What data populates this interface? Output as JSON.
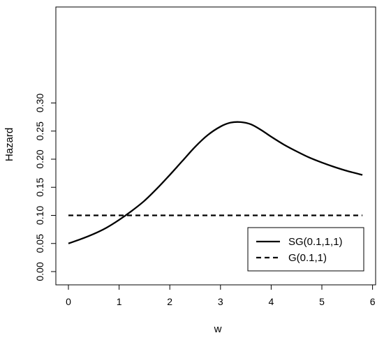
{
  "chart_data": {
    "type": "line",
    "xlabel": "w",
    "ylabel": "Hazard",
    "xlim": [
      0,
      6
    ],
    "ylim": [
      0,
      0.3
    ],
    "x_ticks": [
      "0",
      "1",
      "2",
      "3",
      "4",
      "5",
      "6"
    ],
    "y_ticks": [
      "0.00",
      "0.05",
      "0.10",
      "0.15",
      "0.20",
      "0.25",
      "0.30"
    ],
    "grid": false,
    "legend_position": "bottom-right",
    "series": [
      {
        "name": "SG(0.1,1,1)",
        "line_style": "solid",
        "color": "#000000",
        "x": [
          0,
          0.25,
          0.5,
          0.75,
          1.0,
          1.25,
          1.5,
          1.75,
          2.0,
          2.25,
          2.5,
          2.75,
          3.0,
          3.2,
          3.4,
          3.6,
          3.8,
          4.0,
          4.25,
          4.5,
          4.75,
          5.0,
          5.25,
          5.5,
          5.8
        ],
        "y": [
          0.05,
          0.058,
          0.067,
          0.078,
          0.092,
          0.108,
          0.126,
          0.148,
          0.172,
          0.197,
          0.222,
          0.243,
          0.258,
          0.265,
          0.266,
          0.262,
          0.252,
          0.24,
          0.226,
          0.214,
          0.203,
          0.194,
          0.186,
          0.179,
          0.172
        ]
      },
      {
        "name": "G(0.1,1)",
        "line_style": "dashed",
        "color": "#000000",
        "x": [
          0,
          5.8
        ],
        "y": [
          0.1,
          0.1
        ]
      }
    ]
  }
}
